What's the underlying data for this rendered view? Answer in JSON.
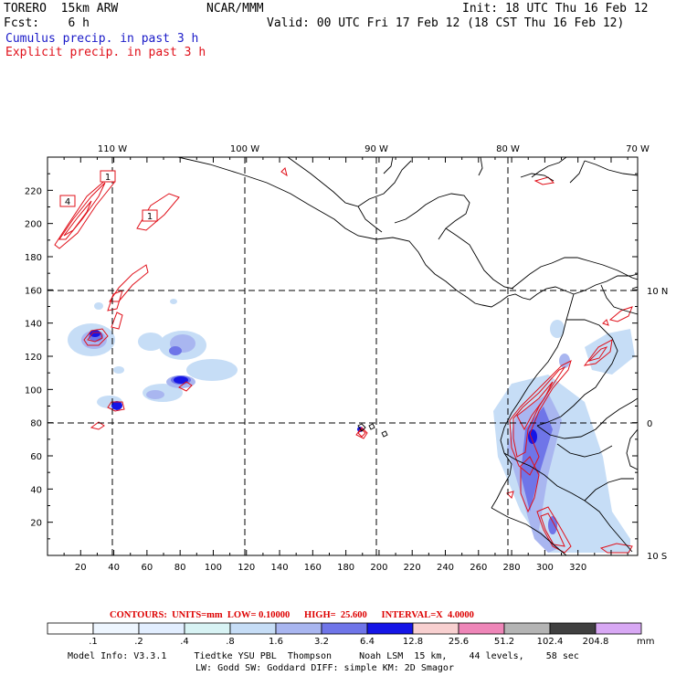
{
  "header": {
    "model": "TORERO  15km ARW",
    "org": "NCAR/MMM",
    "init": "Init: 18 UTC Thu 16 Feb 12",
    "fcst": "Fcst:    6 h",
    "valid": "Valid: 00 UTC Fri 17 Feb 12 (18 CST Thu 16 Feb 12)",
    "legend_cumulus": "Cumulus precip. in past 3 h",
    "legend_explicit": "Explicit precip. in past 3 h"
  },
  "axes": {
    "top_lon": [
      "110 W",
      "100 W",
      "90 W",
      "80 W",
      "70 W"
    ],
    "right_lat": [
      "10 N",
      "0",
      "10 S"
    ],
    "x_ticks": [
      "20",
      "40",
      "60",
      "80",
      "100",
      "120",
      "140",
      "160",
      "180",
      "200",
      "220",
      "240",
      "260",
      "280",
      "300",
      "320"
    ],
    "y_ticks": [
      "220",
      "200",
      "180",
      "160",
      "140",
      "120",
      "100",
      "80",
      "60",
      "40",
      "20"
    ]
  },
  "contour_labels": [
    "1",
    "4",
    "1"
  ],
  "contour_info": "CONTOURS:  UNITS=mm  LOW= 0.10000      HIGH=  25.600      INTERVAL=X  4.0000",
  "colorbar": {
    "unit": "mm",
    "labels": [
      ".1",
      ".2",
      ".4",
      ".8",
      "1.6",
      "3.2",
      "6.4",
      "12.8",
      "25.6",
      "51.2",
      "102.4",
      "204.8"
    ],
    "colors": [
      "#ffffff",
      "#eef6ff",
      "#e2eeff",
      "#d8f3f4",
      "#c6ddf6",
      "#a9b6f0",
      "#6f75e8",
      "#1515e6",
      "#f8d0d0",
      "#ee86b8",
      "#b4b4b4",
      "#404040",
      "#d8a8f4"
    ]
  },
  "footer": {
    "line1": "Model Info: V3.3.1     Tiedtke YSU PBL  Thompson     Noah LSM  15 km,    44 levels,    58 sec",
    "line2": "LW: Godd SW: Goddard DIFF: simple KM: 2D Smagor"
  },
  "colors": {
    "cumulus": "#1a1ac8",
    "explicit": "#e0101a",
    "land": "#000000"
  }
}
